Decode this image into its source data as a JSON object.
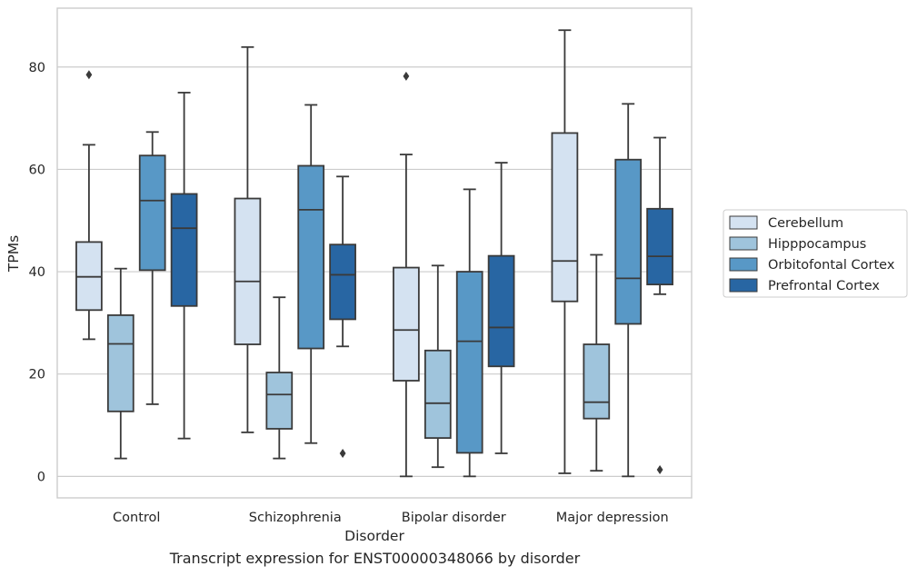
{
  "chart_data": {
    "type": "box",
    "title": "",
    "xlabel": "Disorder",
    "ylabel": "TPMs",
    "ylim": [
      -4.2,
      91.5
    ],
    "yticks": [
      0,
      20,
      40,
      60,
      80
    ],
    "grid": "horizontal",
    "legend_position": "right",
    "categories": [
      "Control",
      "Schizophrenia",
      "Bipolar disorder",
      "Major depression"
    ],
    "series": [
      {
        "name": "Cerebellum",
        "color": "#d4e2f1",
        "boxes": [
          {
            "whisker_low": 26.8,
            "q1": 32.5,
            "median": 39.0,
            "q3": 45.8,
            "whisker_high": 64.8,
            "outliers": [
              78.5
            ]
          },
          {
            "whisker_low": 8.6,
            "q1": 25.8,
            "median": 38.1,
            "q3": 54.3,
            "whisker_high": 83.9,
            "outliers": []
          },
          {
            "whisker_low": 0.0,
            "q1": 18.7,
            "median": 28.6,
            "q3": 40.8,
            "whisker_high": 62.9,
            "outliers": [
              78.2
            ]
          },
          {
            "whisker_low": 0.6,
            "q1": 34.2,
            "median": 42.1,
            "q3": 67.1,
            "whisker_high": 87.2,
            "outliers": []
          }
        ]
      },
      {
        "name": "Hipppocampus",
        "color": "#9fc4dc",
        "boxes": [
          {
            "whisker_low": 3.5,
            "q1": 12.7,
            "median": 25.9,
            "q3": 31.5,
            "whisker_high": 40.6,
            "outliers": []
          },
          {
            "whisker_low": 3.5,
            "q1": 9.3,
            "median": 16.0,
            "q3": 20.3,
            "whisker_high": 35.0,
            "outliers": []
          },
          {
            "whisker_low": 1.8,
            "q1": 7.5,
            "median": 14.3,
            "q3": 24.6,
            "whisker_high": 41.2,
            "outliers": []
          },
          {
            "whisker_low": 1.1,
            "q1": 11.3,
            "median": 14.5,
            "q3": 25.8,
            "whisker_high": 43.3,
            "outliers": []
          }
        ]
      },
      {
        "name": "Orbitofontal Cortex",
        "color": "#5898c6",
        "boxes": [
          {
            "whisker_low": 14.1,
            "q1": 40.3,
            "median": 53.9,
            "q3": 62.7,
            "whisker_high": 67.3,
            "outliers": []
          },
          {
            "whisker_low": 6.5,
            "q1": 25.0,
            "median": 52.1,
            "q3": 60.7,
            "whisker_high": 72.6,
            "outliers": []
          },
          {
            "whisker_low": 0.0,
            "q1": 4.6,
            "median": 26.4,
            "q3": 40.0,
            "whisker_high": 56.1,
            "outliers": []
          },
          {
            "whisker_low": 0.0,
            "q1": 29.8,
            "median": 38.7,
            "q3": 61.9,
            "whisker_high": 72.8,
            "outliers": []
          }
        ]
      },
      {
        "name": "Prefrontal Cortex",
        "color": "#2866a3",
        "boxes": [
          {
            "whisker_low": 7.4,
            "q1": 33.3,
            "median": 48.5,
            "q3": 55.2,
            "whisker_high": 75.0,
            "outliers": []
          },
          {
            "whisker_low": 25.4,
            "q1": 30.7,
            "median": 39.4,
            "q3": 45.3,
            "whisker_high": 58.6,
            "outliers": [
              4.5
            ]
          },
          {
            "whisker_low": 4.5,
            "q1": 21.5,
            "median": 29.1,
            "q3": 43.1,
            "whisker_high": 61.3,
            "outliers": []
          },
          {
            "whisker_low": 35.6,
            "q1": 37.5,
            "median": 43.0,
            "q3": 52.3,
            "whisker_high": 66.2,
            "outliers": [
              1.3
            ]
          }
        ]
      }
    ]
  },
  "caption": "Transcript expression for ENST00000348066 by disorder"
}
